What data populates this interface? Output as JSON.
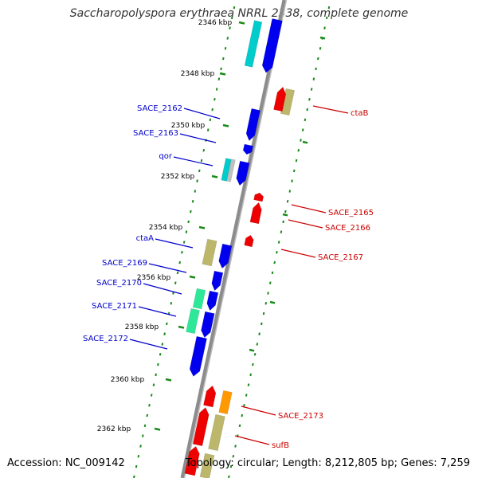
{
  "title": "Saccharopolyspora erythraea NRRL 2338, complete genome",
  "footer": {
    "accession": "Accession: NC_009142",
    "summary": "Topology: circular; Length: 8,212,805 bp; Genes: 7,259"
  },
  "colors": {
    "backbone": "#8c8c8c",
    "forward_gene": "#0000ee",
    "reverse_gene": "#ee0000",
    "forward_label": "#0000cc",
    "reverse_label": "#cc0000",
    "tick": "#1a8a1a",
    "rna": "#00cccc",
    "khaki": "#bdb76b",
    "green": "#2ee89a",
    "orange": "#ff9900",
    "grey": "#c0c0c0"
  },
  "scale_ticks": [
    {
      "text": "2346 kbp",
      "major": true
    },
    {
      "text": "2348 kbp",
      "major": true
    },
    {
      "text": "2350 kbp",
      "major": true
    },
    {
      "text": "2352 kbp",
      "major": true
    },
    {
      "text": "2354 kbp",
      "major": true
    },
    {
      "text": "2356 kbp",
      "major": true
    },
    {
      "text": "2358 kbp",
      "major": true
    },
    {
      "text": "2360 kbp",
      "major": true
    },
    {
      "text": "2362 kbp",
      "major": true
    }
  ],
  "forward_labels": [
    "SACE_2162",
    "SACE_2163",
    "qor",
    "ctaA",
    "SACE_2169",
    "SACE_2170",
    "SACE_2171",
    "SACE_2172"
  ],
  "reverse_labels": [
    "ctaB",
    "SACE_2165",
    "SACE_2166",
    "SACE_2167",
    "SACE_2173",
    "sufB"
  ]
}
